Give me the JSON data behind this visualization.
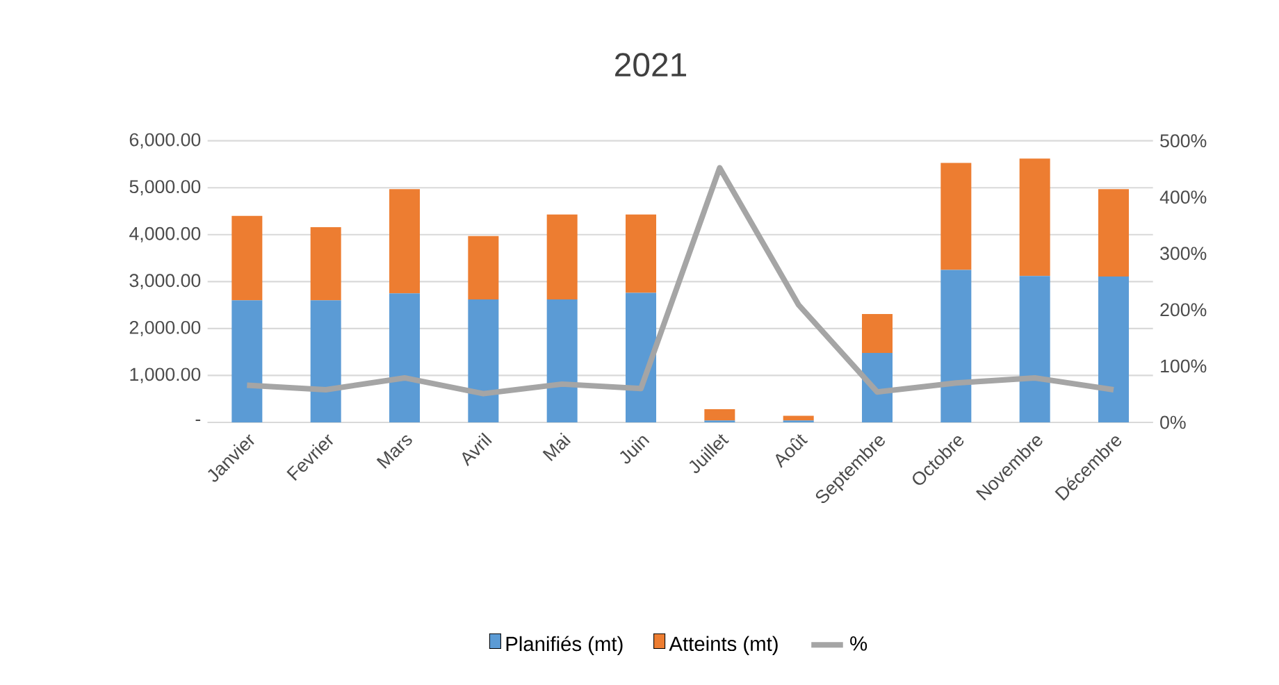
{
  "chart_data": {
    "type": "bar",
    "title": "2021",
    "stacked": true,
    "grid": "y",
    "legend": "bottom",
    "categories": [
      "Janvier",
      "Fevrier",
      "Mars",
      "Avril",
      "Mai",
      "Juin",
      "Juillet",
      "Août",
      "Septembre",
      "Octobre",
      "Novembre",
      "Décembre"
    ],
    "series": [
      {
        "name": "Planifiés (mt)",
        "color": "#5b9bd5",
        "values": [
          2600,
          2600,
          2750,
          2620,
          2620,
          2760,
          40,
          40,
          1480,
          3250,
          3120,
          3110
        ]
      },
      {
        "name": "Atteints (mt)",
        "color": "#ed7d31",
        "values": [
          1800,
          1560,
          2220,
          1350,
          1810,
          1670,
          240,
          100,
          830,
          2280,
          2500,
          1860
        ]
      },
      {
        "name": "%",
        "color": "#a5a5a5",
        "type": "line",
        "axis": "y2",
        "values": [
          66,
          58,
          79,
          51,
          68,
          60,
          452,
          209,
          54,
          70,
          79,
          58
        ]
      }
    ],
    "ylim": [
      0,
      6000
    ],
    "yticks": [
      {
        "value": 0,
        "label": "-"
      },
      {
        "value": 1000,
        "label": "1,000.00"
      },
      {
        "value": 2000,
        "label": "2,000.00"
      },
      {
        "value": 3000,
        "label": "3,000.00"
      },
      {
        "value": 4000,
        "label": "4,000.00"
      },
      {
        "value": 5000,
        "label": "5,000.00"
      },
      {
        "value": 6000,
        "label": "6,000.00"
      }
    ],
    "y2lim": [
      0,
      500
    ],
    "y2ticks": [
      {
        "value": 0,
        "label": "0%"
      },
      {
        "value": 100,
        "label": "100%"
      },
      {
        "value": 200,
        "label": "200%"
      },
      {
        "value": 300,
        "label": "300%"
      },
      {
        "value": 400,
        "label": "400%"
      },
      {
        "value": 500,
        "label": "500%"
      }
    ]
  }
}
